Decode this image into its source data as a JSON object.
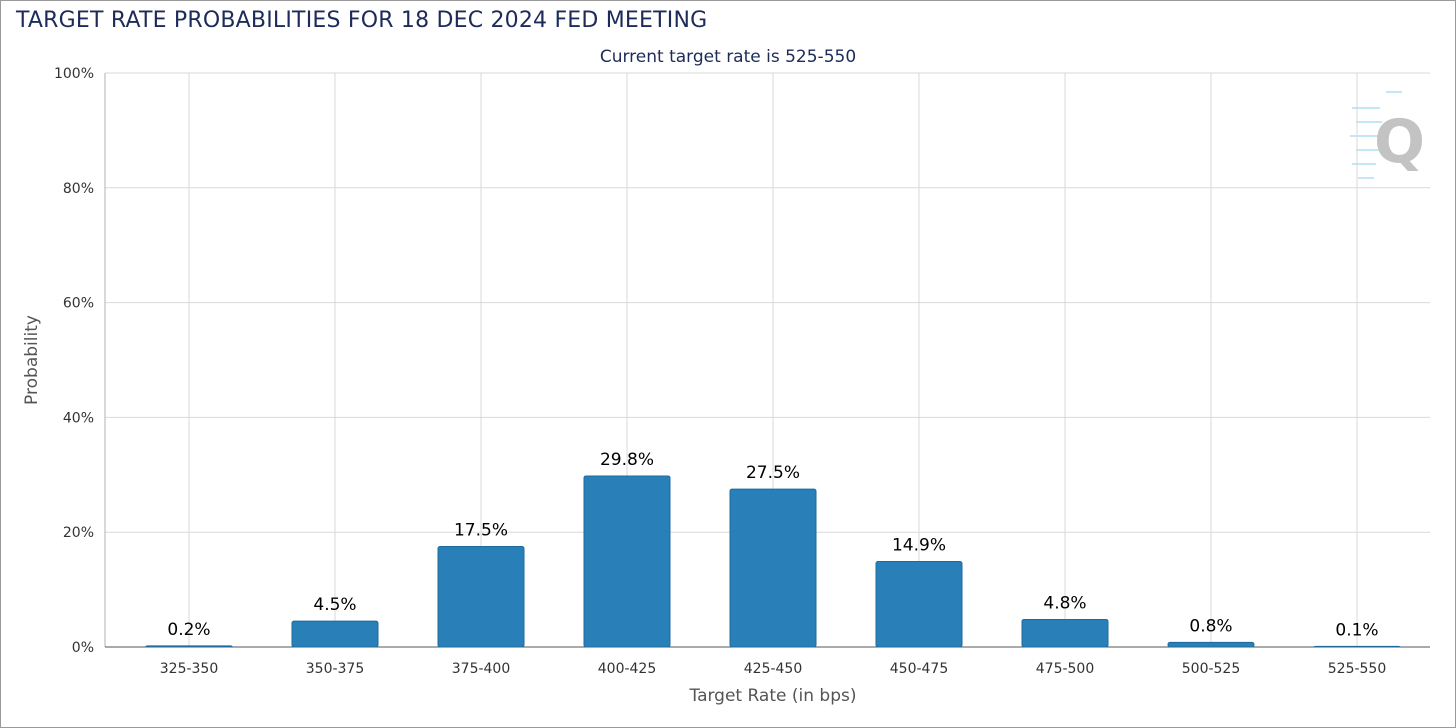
{
  "header": {
    "title": "TARGET RATE PROBABILITIES FOR 18 DEC 2024 FED MEETING",
    "subtitle": "Current target rate is 525-550"
  },
  "colors": {
    "bar": "#2980b9",
    "bar_border": "#1f6a9c",
    "grid": "#d9d9d9",
    "title": "#1c2b5a"
  },
  "watermark": {
    "icon": "quikstrike-q-logo-icon",
    "text": "Q"
  },
  "chart_data": {
    "type": "bar",
    "title": "TARGET RATE PROBABILITIES FOR 18 DEC 2024 FED MEETING",
    "subtitle": "Current target rate is 525-550",
    "xlabel": "Target Rate (in bps)",
    "ylabel": "Probability",
    "categories": [
      "325-350",
      "350-375",
      "375-400",
      "400-425",
      "425-450",
      "450-475",
      "475-500",
      "500-525",
      "525-550"
    ],
    "values": [
      0.2,
      4.5,
      17.5,
      29.8,
      27.5,
      14.9,
      4.8,
      0.8,
      0.1
    ],
    "data_labels": [
      "0.2%",
      "4.5%",
      "17.5%",
      "29.8%",
      "27.5%",
      "14.9%",
      "4.8%",
      "0.8%",
      "0.1%"
    ],
    "ylim": [
      0,
      100
    ],
    "yticks": [
      0,
      20,
      40,
      60,
      80,
      100
    ],
    "ytick_labels": [
      "0%",
      "20%",
      "40%",
      "60%",
      "80%",
      "100%"
    ],
    "grid": true,
    "legend": "none"
  }
}
